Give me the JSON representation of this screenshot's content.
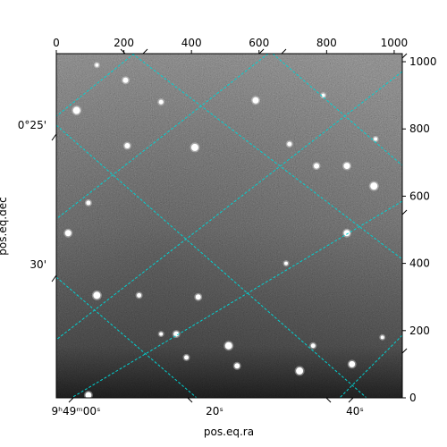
{
  "figure": {
    "xlabel": "pos.eq.ra",
    "ylabel": "pos.eq.dec",
    "grid": true,
    "grid_color": "#00d2d2",
    "image_colormap": "grayscale"
  },
  "chart_data": {
    "type": "heatmap",
    "pixel_axes": {
      "xlim": [
        0,
        1024
      ],
      "ylim": [
        0,
        1024
      ],
      "top_ticks": [
        0,
        200,
        400,
        600,
        800,
        1000
      ],
      "right_ticks": [
        0,
        200,
        400,
        600,
        800,
        1000
      ]
    },
    "world_axes": {
      "ra_tick_labels": [
        "9ʰ49ᵐ00ˢ",
        "20ˢ",
        "40ˢ"
      ],
      "dec_tick_labels": [
        "0°25'",
        "30'"
      ]
    },
    "sources": [
      {
        "x": 120,
        "y": 990
      },
      {
        "x": 205,
        "y": 945
      },
      {
        "x": 60,
        "y": 855
      },
      {
        "x": 310,
        "y": 880
      },
      {
        "x": 590,
        "y": 885
      },
      {
        "x": 790,
        "y": 900
      },
      {
        "x": 210,
        "y": 750
      },
      {
        "x": 410,
        "y": 745
      },
      {
        "x": 690,
        "y": 755
      },
      {
        "x": 860,
        "y": 690
      },
      {
        "x": 945,
        "y": 770
      },
      {
        "x": 770,
        "y": 690
      },
      {
        "x": 940,
        "y": 630
      },
      {
        "x": 95,
        "y": 580
      },
      {
        "x": 35,
        "y": 490
      },
      {
        "x": 680,
        "y": 400
      },
      {
        "x": 420,
        "y": 300
      },
      {
        "x": 120,
        "y": 305
      },
      {
        "x": 245,
        "y": 305
      },
      {
        "x": 860,
        "y": 490
      },
      {
        "x": 310,
        "y": 190
      },
      {
        "x": 355,
        "y": 190
      },
      {
        "x": 510,
        "y": 155
      },
      {
        "x": 760,
        "y": 155
      },
      {
        "x": 875,
        "y": 100
      },
      {
        "x": 965,
        "y": 180
      },
      {
        "x": 535,
        "y": 95
      },
      {
        "x": 720,
        "y": 80
      },
      {
        "x": 385,
        "y": 120
      },
      {
        "x": 95,
        "y": 8
      }
    ]
  }
}
